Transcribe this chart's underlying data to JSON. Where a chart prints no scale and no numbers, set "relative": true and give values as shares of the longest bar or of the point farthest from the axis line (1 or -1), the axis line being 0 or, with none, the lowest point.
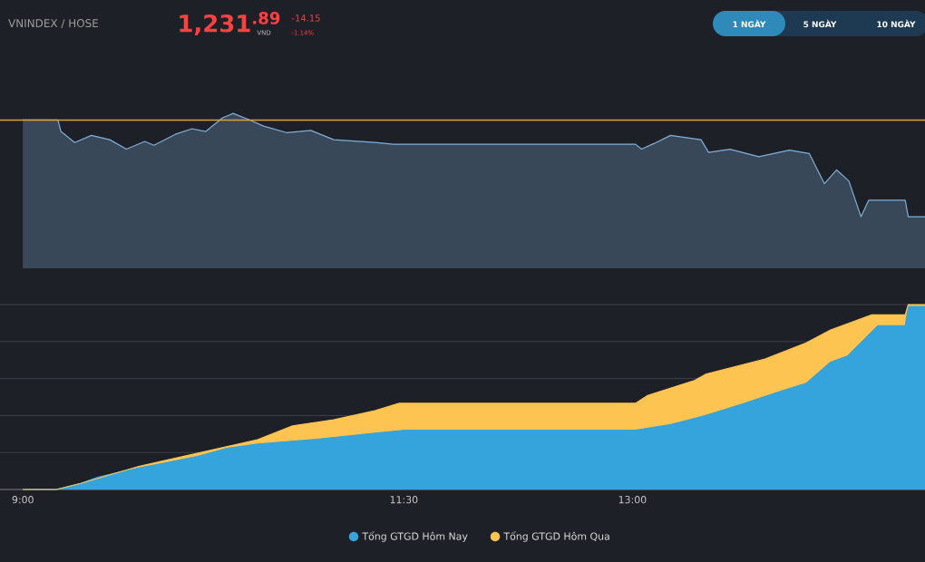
{
  "chart_data": [
    {
      "type": "area",
      "title": "VNINDEX / HOSE",
      "relative": true,
      "xlim": [
        8.85,
        14.92
      ],
      "tick_labels": false,
      "grid": false,
      "legend": false,
      "annotations": [
        "1,231$^{.89}$",
        "VND",
        "-14.15",
        "-1.14%",
        "1 NGÀY",
        "5 NGÀY",
        "10 NGÀY"
      ],
      "ref_lines": [
        {
          "axis": "y",
          "value": 0.957,
          "color": "#d4a72c"
        }
      ],
      "series": [
        {
          "color": "#7fb0d8",
          "x": [
            9.0,
            9.23,
            9.25,
            9.34,
            9.45,
            9.57,
            9.68,
            9.8,
            9.86,
            10.0,
            10.11,
            10.2,
            10.31,
            10.38,
            10.48,
            10.58,
            10.73,
            10.89,
            11.04,
            11.31,
            11.43,
            13.02,
            13.06,
            13.14,
            13.25,
            13.45,
            13.5,
            13.64,
            13.83,
            14.03,
            14.16,
            14.26,
            14.34,
            14.42,
            14.5,
            14.55,
            14.79,
            14.81,
            14.92
          ],
          "values": [
            0.957,
            0.957,
            0.883,
            0.812,
            0.858,
            0.83,
            0.769,
            0.819,
            0.794,
            0.865,
            0.901,
            0.883,
            0.971,
            1,
            0.961,
            0.918,
            0.876,
            0.89,
            0.83,
            0.812,
            0.801,
            0.801,
            0.769,
            0.805,
            0.858,
            0.83,
            0.748,
            0.769,
            0.72,
            0.763,
            0.741,
            0.546,
            0.635,
            0.564,
            0.333,
            0.439,
            0.439,
            0.333,
            0.333
          ]
        }
      ]
    },
    {
      "type": "area",
      "relative": true,
      "xlim": [
        8.85,
        14.92
      ],
      "tick_labels": "x",
      "grid": "y",
      "legend": "bottom",
      "xticks": [
        {
          "value": 9,
          "label": "9:00"
        },
        {
          "value": 11.5,
          "label": "11:30"
        },
        {
          "value": 13,
          "label": "13:00"
        }
      ],
      "series": [
        {
          "name": "Tổng GTGD Hôm Nay",
          "color": "#35a3dc",
          "x": [
            9.0,
            9.22,
            9.38,
            9.49,
            9.69,
            9.96,
            10.15,
            10.34,
            10.54,
            10.93,
            11.31,
            11.51,
            13.02,
            13.25,
            13.48,
            13.71,
            13.95,
            14.14,
            14.3,
            14.41,
            14.61,
            14.79,
            14.81,
            14.92
          ],
          "values": [
            0,
            0,
            0.033,
            0.066,
            0.105,
            0.148,
            0.18,
            0.223,
            0.246,
            0.272,
            0.305,
            0.321,
            0.321,
            0.351,
            0.4,
            0.459,
            0.525,
            0.574,
            0.689,
            0.721,
            0.885,
            0.885,
            0.99,
            0.99
          ]
        },
        {
          "name": "Tổng GTGD Hôm Qua",
          "color": "#fec452",
          "x": [
            9.0,
            9.22,
            9.38,
            9.76,
            10.15,
            10.54,
            10.77,
            11.04,
            11.31,
            11.47,
            13.02,
            13.1,
            13.41,
            13.48,
            13.87,
            14.14,
            14.3,
            14.57,
            14.79,
            14.81,
            14.92
          ],
          "values": [
            0,
            0,
            0.033,
            0.125,
            0.197,
            0.269,
            0.344,
            0.377,
            0.426,
            0.466,
            0.466,
            0.508,
            0.59,
            0.623,
            0.705,
            0.793,
            0.862,
            0.944,
            0.944,
            1,
            1
          ]
        }
      ]
    }
  ]
}
